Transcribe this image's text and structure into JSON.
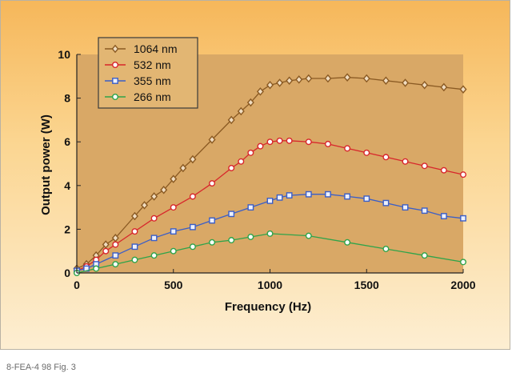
{
  "caption": "8-FEA-4 98 Fig. 3",
  "chart_data": {
    "type": "line",
    "xlabel": "Frequency (Hz)",
    "ylabel": "Output power (W)",
    "xlim": [
      0,
      2000
    ],
    "ylim": [
      0,
      10
    ],
    "xticks": [
      0,
      500,
      1000,
      1500,
      2000
    ],
    "yticks": [
      0,
      2,
      4,
      6,
      8,
      10
    ],
    "legend_position": "top-left",
    "plot_background": "#d9a866",
    "series": [
      {
        "name": "1064 nm",
        "color": "#8a5a23",
        "marker": "diamond",
        "points": [
          [
            0,
            0.2
          ],
          [
            50,
            0.4
          ],
          [
            100,
            0.8
          ],
          [
            150,
            1.3
          ],
          [
            200,
            1.6
          ],
          [
            300,
            2.6
          ],
          [
            350,
            3.1
          ],
          [
            400,
            3.5
          ],
          [
            450,
            3.8
          ],
          [
            500,
            4.3
          ],
          [
            550,
            4.8
          ],
          [
            600,
            5.2
          ],
          [
            700,
            6.1
          ],
          [
            800,
            7.0
          ],
          [
            850,
            7.4
          ],
          [
            900,
            7.8
          ],
          [
            950,
            8.3
          ],
          [
            1000,
            8.6
          ],
          [
            1050,
            8.7
          ],
          [
            1100,
            8.8
          ],
          [
            1150,
            8.85
          ],
          [
            1200,
            8.9
          ],
          [
            1300,
            8.9
          ],
          [
            1400,
            8.95
          ],
          [
            1500,
            8.9
          ],
          [
            1600,
            8.8
          ],
          [
            1700,
            8.7
          ],
          [
            1800,
            8.6
          ],
          [
            1900,
            8.5
          ],
          [
            2000,
            8.4
          ]
        ]
      },
      {
        "name": "532 nm",
        "color": "#d8262b",
        "marker": "circle",
        "points": [
          [
            0,
            0.1
          ],
          [
            50,
            0.3
          ],
          [
            100,
            0.6
          ],
          [
            150,
            1.0
          ],
          [
            200,
            1.3
          ],
          [
            300,
            1.9
          ],
          [
            400,
            2.5
          ],
          [
            500,
            3.0
          ],
          [
            600,
            3.5
          ],
          [
            700,
            4.1
          ],
          [
            800,
            4.8
          ],
          [
            850,
            5.1
          ],
          [
            900,
            5.5
          ],
          [
            950,
            5.8
          ],
          [
            1000,
            6.0
          ],
          [
            1050,
            6.05
          ],
          [
            1100,
            6.05
          ],
          [
            1200,
            6.0
          ],
          [
            1300,
            5.9
          ],
          [
            1400,
            5.7
          ],
          [
            1500,
            5.5
          ],
          [
            1600,
            5.3
          ],
          [
            1700,
            5.1
          ],
          [
            1800,
            4.9
          ],
          [
            1900,
            4.7
          ],
          [
            2000,
            4.5
          ]
        ]
      },
      {
        "name": "355 nm",
        "color": "#3a5ec8",
        "marker": "square",
        "points": [
          [
            0,
            0.1
          ],
          [
            50,
            0.2
          ],
          [
            100,
            0.4
          ],
          [
            200,
            0.8
          ],
          [
            300,
            1.2
          ],
          [
            400,
            1.6
          ],
          [
            500,
            1.9
          ],
          [
            600,
            2.1
          ],
          [
            700,
            2.4
          ],
          [
            800,
            2.7
          ],
          [
            900,
            3.0
          ],
          [
            1000,
            3.3
          ],
          [
            1050,
            3.45
          ],
          [
            1100,
            3.55
          ],
          [
            1200,
            3.6
          ],
          [
            1300,
            3.6
          ],
          [
            1400,
            3.5
          ],
          [
            1500,
            3.4
          ],
          [
            1600,
            3.2
          ],
          [
            1700,
            3.0
          ],
          [
            1800,
            2.85
          ],
          [
            1900,
            2.6
          ],
          [
            2000,
            2.5
          ]
        ]
      },
      {
        "name": "266 nm",
        "color": "#2fa44a",
        "marker": "circle",
        "points": [
          [
            0,
            0.0
          ],
          [
            100,
            0.2
          ],
          [
            200,
            0.4
          ],
          [
            300,
            0.6
          ],
          [
            400,
            0.8
          ],
          [
            500,
            1.0
          ],
          [
            600,
            1.2
          ],
          [
            700,
            1.4
          ],
          [
            800,
            1.5
          ],
          [
            900,
            1.65
          ],
          [
            1000,
            1.8
          ],
          [
            1200,
            1.7
          ],
          [
            1400,
            1.4
          ],
          [
            1600,
            1.1
          ],
          [
            1800,
            0.8
          ],
          [
            2000,
            0.5
          ]
        ]
      }
    ]
  }
}
